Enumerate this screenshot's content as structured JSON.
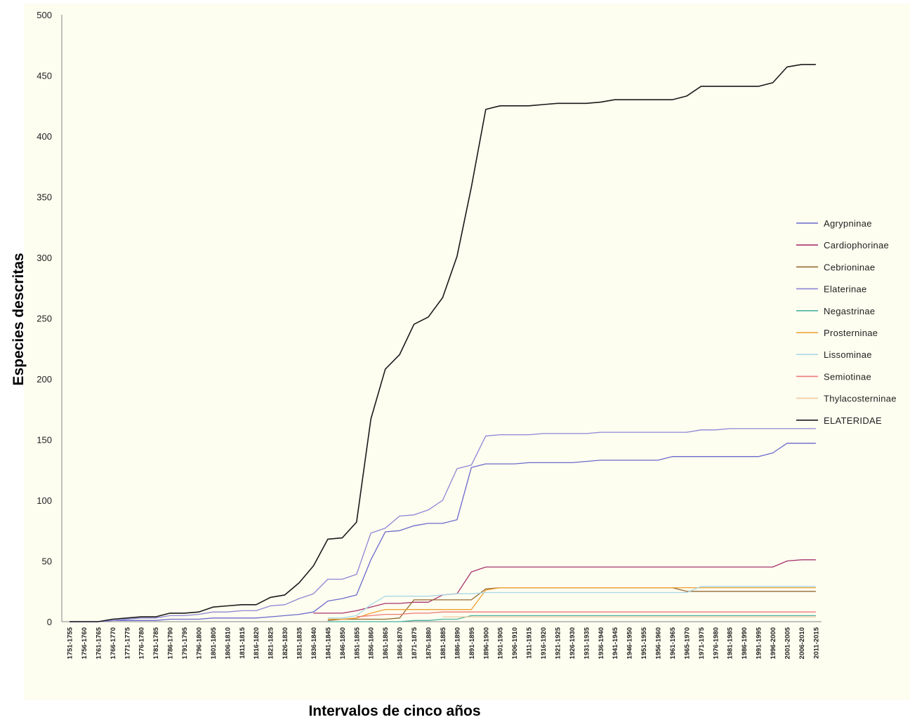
{
  "chart_data": {
    "type": "line",
    "xlabel": "Intervalos de cinco años",
    "ylabel": "Especies descritas",
    "ylim": [
      0,
      500
    ],
    "yticks": [
      0,
      50,
      100,
      150,
      200,
      250,
      300,
      350,
      400,
      450,
      500
    ],
    "grid": false,
    "legend_position": "right",
    "plot_background": "#fdfdf0",
    "categories": [
      "1751-1755",
      "1756-1760",
      "1761-1765",
      "1766-1770",
      "1771-1775",
      "1776-1780",
      "1781-1785",
      "1786-1790",
      "1791-1795",
      "1796-1800",
      "1801-1805",
      "1806-1810",
      "1811-1815",
      "1816-1820",
      "1821-1825",
      "1826-1830",
      "1831-1835",
      "1836-1840",
      "1841-1845",
      "1846-1850",
      "1851-1855",
      "1856-1860",
      "1861-1865",
      "1866-1870",
      "1871-1875",
      "1876-1880",
      "1881-1885",
      "1886-1890",
      "1891-1895",
      "1896-1900",
      "1901-1905",
      "1906-1910",
      "1911-1915",
      "1916-1920",
      "1921-1925",
      "1926-1930",
      "1931-1935",
      "1936-1940",
      "1941-1945",
      "1946-1950",
      "1951-1955",
      "1956-1960",
      "1961-1965",
      "1965-1970",
      "1971-1975",
      "1976-1980",
      "1981-1985",
      "1986-1990",
      "1991-1995",
      "1996-2000",
      "2001-2005",
      "2006-2010",
      "2011-2015"
    ],
    "series": [
      {
        "name": "Agrypninae",
        "color": "#6a6acc",
        "values": [
          0,
          0,
          0,
          1,
          1,
          1,
          1,
          2,
          2,
          2,
          3,
          3,
          3,
          3,
          4,
          5,
          6,
          8,
          17,
          19,
          22,
          51,
          74,
          75,
          79,
          81,
          81,
          84,
          127,
          130,
          130,
          130,
          131,
          131,
          131,
          131,
          132,
          133,
          133,
          133,
          133,
          133,
          136,
          136,
          136,
          136,
          136,
          136,
          136,
          139,
          147,
          147,
          147
        ]
      },
      {
        "name": "Cardiophorinae",
        "color": "#a8336b",
        "values": [
          null,
          null,
          null,
          null,
          null,
          null,
          null,
          null,
          null,
          null,
          null,
          null,
          null,
          null,
          null,
          null,
          null,
          7,
          7,
          7,
          9,
          12,
          15,
          15,
          16,
          16,
          22,
          23,
          41,
          45,
          45,
          45,
          45,
          45,
          45,
          45,
          45,
          45,
          45,
          45,
          45,
          45,
          45,
          45,
          45,
          45,
          45,
          45,
          45,
          45,
          50,
          51,
          51
        ]
      },
      {
        "name": "Cebrioninae",
        "color": "#946b33",
        "values": [
          null,
          null,
          null,
          null,
          null,
          null,
          null,
          null,
          null,
          null,
          null,
          null,
          null,
          null,
          null,
          null,
          null,
          null,
          1,
          2,
          2,
          2,
          2,
          3,
          18,
          18,
          18,
          18,
          18,
          27,
          28,
          28,
          28,
          28,
          28,
          28,
          28,
          28,
          28,
          28,
          28,
          28,
          28,
          25,
          25,
          25,
          25,
          25,
          25,
          25,
          25,
          25,
          25
        ]
      },
      {
        "name": "Elaterinae",
        "color": "#8d86d6",
        "values": [
          0,
          0,
          0,
          1,
          2,
          3,
          3,
          5,
          5,
          6,
          8,
          8,
          9,
          9,
          13,
          14,
          19,
          23,
          35,
          35,
          39,
          73,
          77,
          87,
          88,
          92,
          100,
          126,
          129,
          153,
          154,
          154,
          154,
          155,
          155,
          155,
          155,
          156,
          156,
          156,
          156,
          156,
          156,
          156,
          158,
          158,
          159,
          159,
          159,
          159,
          159,
          159,
          159
        ]
      },
      {
        "name": "Negastrinae",
        "color": "#4ab3a0",
        "values": [
          null,
          null,
          null,
          null,
          null,
          null,
          null,
          null,
          null,
          null,
          null,
          null,
          null,
          null,
          null,
          null,
          null,
          null,
          0,
          0,
          0,
          0,
          0,
          0,
          1,
          1,
          2,
          2,
          5,
          5,
          5,
          5,
          5,
          5,
          5,
          5,
          5,
          5,
          5,
          5,
          5,
          5,
          5,
          5,
          5,
          5,
          5,
          5,
          5,
          5,
          5,
          5,
          5
        ]
      },
      {
        "name": "Prosterninae",
        "color": "#f0a030",
        "values": [
          null,
          null,
          null,
          null,
          null,
          null,
          null,
          null,
          null,
          null,
          null,
          null,
          null,
          null,
          null,
          null,
          null,
          null,
          2,
          2,
          3,
          7,
          10,
          10,
          10,
          10,
          10,
          10,
          10,
          26,
          28,
          28,
          28,
          28,
          28,
          28,
          28,
          28,
          28,
          28,
          28,
          28,
          28,
          28,
          28,
          28,
          28,
          28,
          28,
          28,
          28,
          28,
          28
        ]
      },
      {
        "name": "Lissominae",
        "color": "#a8d8e6",
        "values": [
          null,
          null,
          null,
          null,
          null,
          null,
          null,
          null,
          null,
          null,
          null,
          null,
          null,
          null,
          null,
          null,
          null,
          null,
          3,
          3,
          5,
          14,
          21,
          21,
          21,
          21,
          22,
          23,
          23,
          24,
          24,
          24,
          24,
          24,
          24,
          24,
          24,
          24,
          24,
          24,
          24,
          24,
          24,
          24,
          29,
          29,
          29,
          29,
          29,
          29,
          29,
          29,
          29
        ]
      },
      {
        "name": "Semiotinae",
        "color": "#f07878",
        "values": [
          null,
          null,
          null,
          null,
          null,
          null,
          null,
          null,
          null,
          null,
          null,
          null,
          null,
          null,
          null,
          null,
          null,
          null,
          null,
          null,
          4,
          5,
          6,
          6,
          7,
          7,
          8,
          8,
          8,
          8,
          8,
          8,
          8,
          8,
          8,
          8,
          8,
          8,
          8,
          8,
          8,
          8,
          8,
          8,
          8,
          8,
          8,
          8,
          8,
          8,
          8,
          8,
          8
        ]
      },
      {
        "name": "Thylacosterninae",
        "color": "#f3c8a0",
        "values": [
          null,
          null,
          null,
          null,
          null,
          null,
          null,
          null,
          null,
          null,
          null,
          null,
          null,
          null,
          null,
          null,
          null,
          null,
          null,
          null,
          null,
          null,
          null,
          null,
          null,
          null,
          4,
          4,
          4,
          4,
          4,
          4,
          4,
          4,
          4,
          4,
          4,
          4,
          4,
          4,
          4,
          4,
          4,
          4,
          4,
          4,
          4,
          4,
          4,
          4,
          4,
          4,
          4
        ]
      },
      {
        "name": "ELATERIDAE",
        "color": "#1a1a1a",
        "values": [
          0,
          0,
          0,
          2,
          3,
          4,
          4,
          7,
          7,
          8,
          12,
          13,
          14,
          14,
          20,
          22,
          32,
          46,
          68,
          69,
          82,
          167,
          208,
          220,
          245,
          251,
          267,
          301,
          358,
          422,
          425,
          425,
          425,
          426,
          427,
          427,
          427,
          428,
          430,
          430,
          430,
          430,
          430,
          433,
          441,
          441,
          441,
          441,
          441,
          444,
          457,
          459,
          459
        ]
      }
    ]
  }
}
